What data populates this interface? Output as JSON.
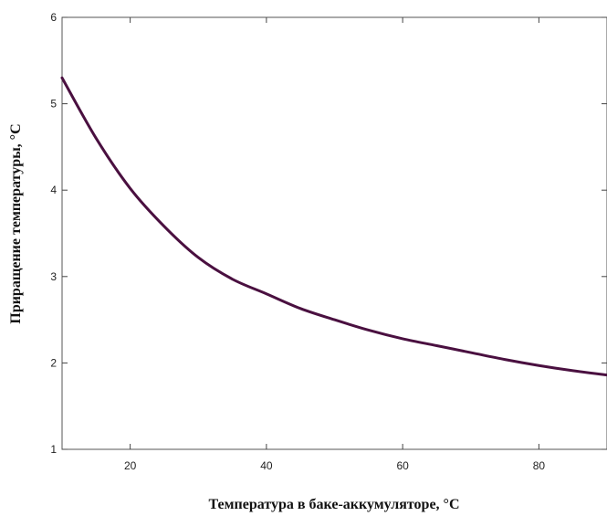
{
  "chart_data": {
    "type": "line",
    "title": "",
    "xlabel": "Температура в баке-аккумуляторе, °C",
    "ylabel": "Приращение  температуры, °C",
    "xlim": [
      10,
      90
    ],
    "ylim": [
      1,
      6
    ],
    "x_ticks": [
      20,
      40,
      60,
      80
    ],
    "y_ticks": [
      1,
      2,
      3,
      4,
      5,
      6
    ],
    "grid": false,
    "series": [
      {
        "color": "#4a1040",
        "x": [
          10,
          15,
          20,
          25,
          30,
          35,
          40,
          45,
          50,
          55,
          60,
          65,
          70,
          75,
          80,
          85,
          90
        ],
        "y": [
          5.3,
          4.6,
          4.02,
          3.58,
          3.22,
          2.97,
          2.8,
          2.63,
          2.5,
          2.38,
          2.28,
          2.2,
          2.12,
          2.04,
          1.97,
          1.91,
          1.86
        ]
      }
    ]
  }
}
